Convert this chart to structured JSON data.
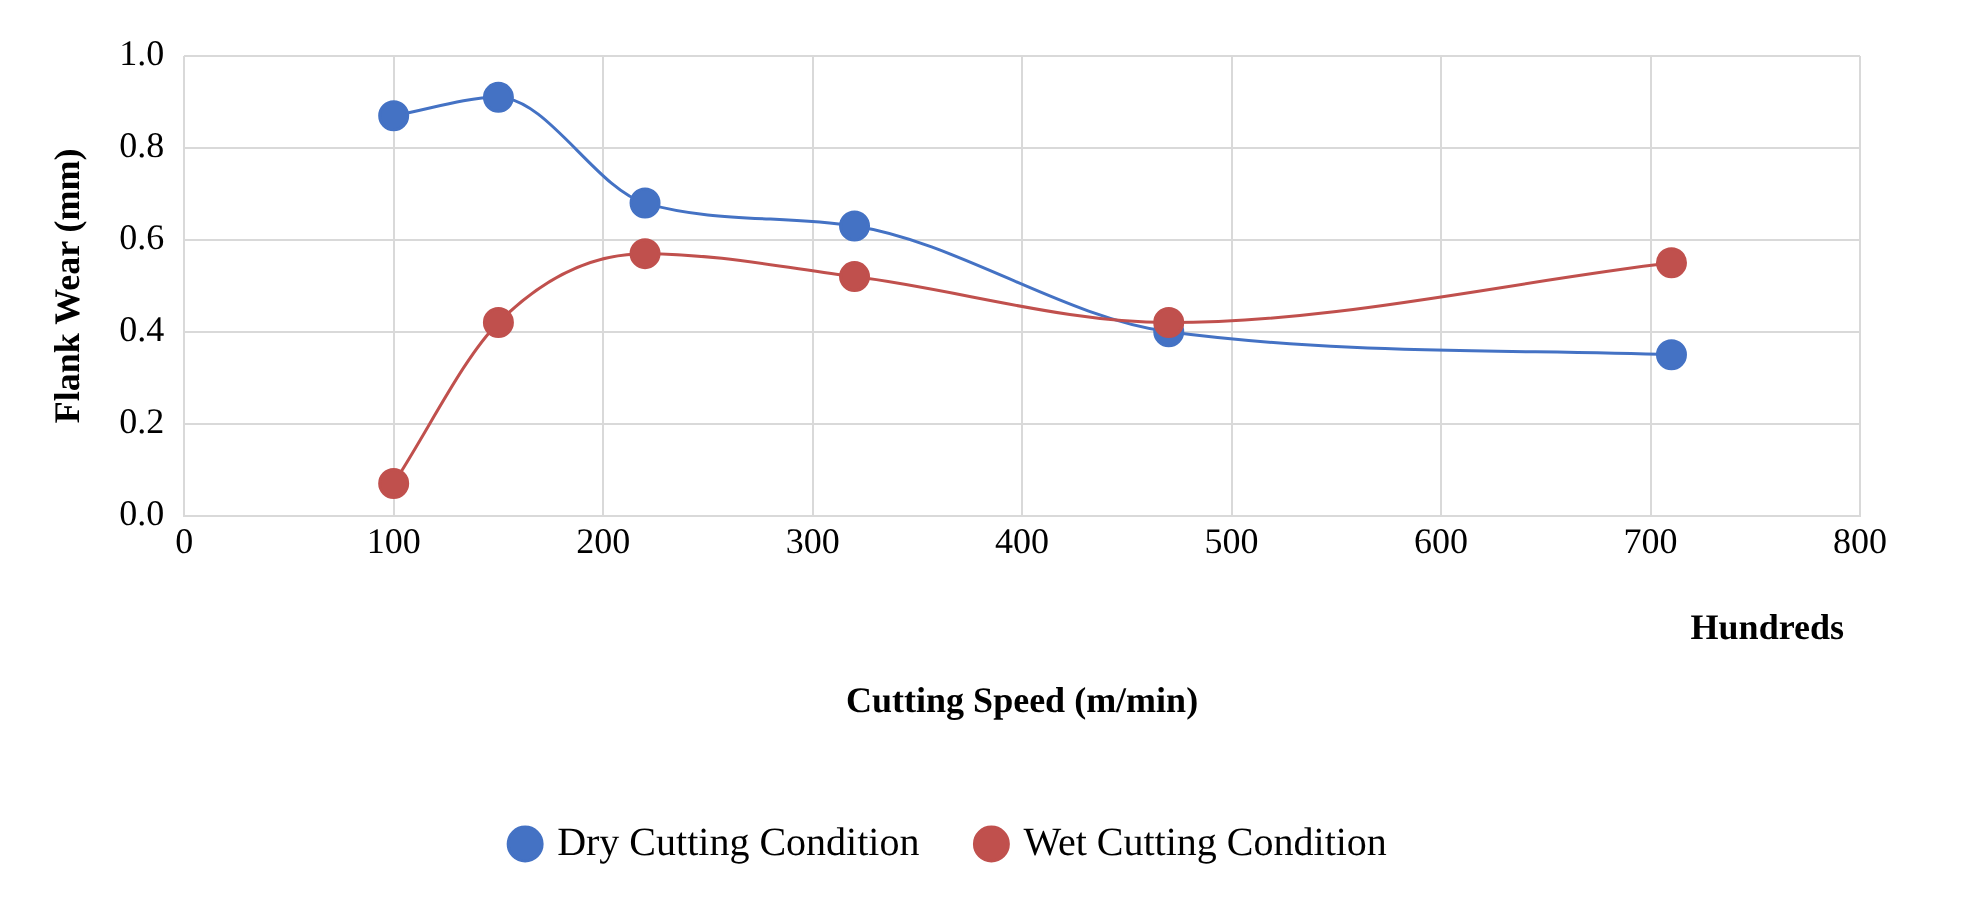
{
  "chart_data": {
    "type": "line",
    "xlabel": "Cutting Speed (m/min)",
    "ylabel": "Flank Wear (mm)",
    "annotations": [
      "Hundreds"
    ],
    "series": [
      {
        "name": "Dry Cutting Condition",
        "color": "#4472c4",
        "x": [
          100,
          150,
          220,
          320,
          470,
          710
        ],
        "values": [
          0.87,
          0.91,
          0.68,
          0.63,
          0.4,
          0.35
        ]
      },
      {
        "name": "Wet Cutting Condition",
        "color": "#c0504d",
        "x": [
          100,
          150,
          220,
          320,
          470,
          710
        ],
        "values": [
          0.07,
          0.42,
          0.57,
          0.52,
          0.42,
          0.55
        ]
      }
    ],
    "xlim": [
      0,
      800
    ],
    "xticks": [
      0,
      100,
      200,
      300,
      400,
      500,
      600,
      700,
      800
    ],
    "ylim": [
      0,
      1
    ],
    "yticks": [
      {
        "value": 0,
        "label": "0.0"
      },
      {
        "value": 0.2,
        "label": "0.2"
      },
      {
        "value": 0.4,
        "label": "0.4"
      },
      {
        "value": 0.6,
        "label": "0.6"
      },
      {
        "value": 0.8,
        "label": "0.8"
      },
      {
        "value": 1,
        "label": "1.0"
      }
    ],
    "grid": true,
    "legend": "bottom",
    "marker": "circle",
    "line_style": "solid"
  }
}
